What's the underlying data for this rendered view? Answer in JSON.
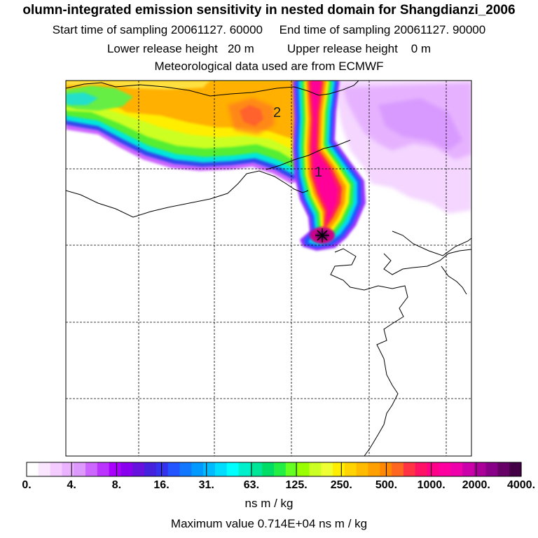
{
  "title": "olumn-integrated emission sensitivity in nested domain for Shangdianzi_2006",
  "start_label": "Start time of sampling",
  "start_value": "20061127. 60000",
  "end_label": "End time of sampling",
  "end_value": "20061127. 90000",
  "lower_label": "Lower release height",
  "lower_value": "20 m",
  "upper_label": "Upper release height",
  "upper_value": "0 m",
  "met_text": "Meteorological data used are from ECMWF",
  "map": {
    "labels": [
      "2",
      "1"
    ],
    "receptor_marker": "asterisk-icon"
  },
  "colorbar": {
    "tick_labels": [
      "0.",
      "4.",
      "8.",
      "16.",
      "31.",
      "63.",
      "125.",
      "250.",
      "500.",
      "1000.",
      "2000.",
      "4000."
    ],
    "colors": [
      "#ffffff",
      "#fbe6ff",
      "#f4ccff",
      "#eab2ff",
      "#de99ff",
      "#cc66ff",
      "#bb33ff",
      "#aa00ff",
      "#8800ee",
      "#6611dd",
      "#4422dd",
      "#3333ee",
      "#2255ff",
      "#1177ff",
      "#0099ff",
      "#00bbff",
      "#00ddff",
      "#00ffff",
      "#00f0cc",
      "#00e699",
      "#00dd66",
      "#22ee44",
      "#66ff22",
      "#99ff00",
      "#ccff22",
      "#eeff33",
      "#ffee00",
      "#ffd400",
      "#ffbb00",
      "#ffa000",
      "#ff8800",
      "#ff6622",
      "#ff3344",
      "#ff1166",
      "#ff0088",
      "#ff00a0",
      "#ee00aa",
      "#cc00aa",
      "#aa0099",
      "#880088",
      "#660066",
      "#440044"
    ]
  },
  "units": "ns m / kg",
  "max_label": "Maximum value",
  "max_value": "0.714E+04 ns m / kg"
}
